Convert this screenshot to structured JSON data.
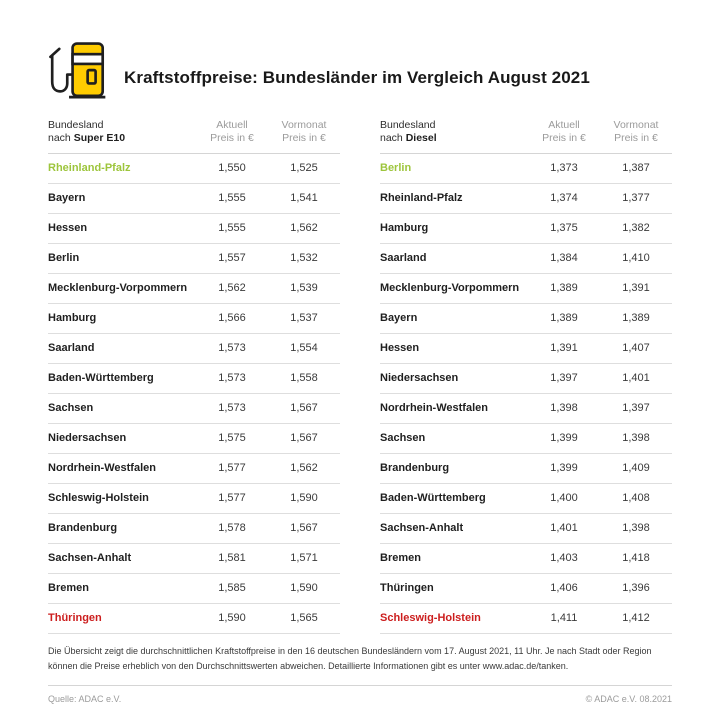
{
  "header": {
    "title": "Kraftstoffpreise: Bundesländer im Vergleich August 2021"
  },
  "columns": {
    "state_line1": "Bundesland",
    "state_prefix": "nach ",
    "current_line1": "Aktuell",
    "current_line2": "Preis in €",
    "previous_line1": "Vormonat",
    "previous_line2": "Preis in €"
  },
  "chart_data": [
    {
      "type": "table",
      "fuel": "Super E10",
      "columns": [
        "Bundesland nach Super E10",
        "Aktuell Preis in €",
        "Vormonat Preis in €"
      ],
      "rows": [
        {
          "state": "Rheinland-Pfalz",
          "aktuell": "1,550",
          "vormonat": "1,525",
          "color": "green"
        },
        {
          "state": "Bayern",
          "aktuell": "1,555",
          "vormonat": "1,541",
          "color": "default"
        },
        {
          "state": "Hessen",
          "aktuell": "1,555",
          "vormonat": "1,562",
          "color": "default"
        },
        {
          "state": "Berlin",
          "aktuell": "1,557",
          "vormonat": "1,532",
          "color": "default"
        },
        {
          "state": "Mecklenburg-Vorpommern",
          "aktuell": "1,562",
          "vormonat": "1,539",
          "color": "default"
        },
        {
          "state": "Hamburg",
          "aktuell": "1,566",
          "vormonat": "1,537",
          "color": "default"
        },
        {
          "state": "Saarland",
          "aktuell": "1,573",
          "vormonat": "1,554",
          "color": "default"
        },
        {
          "state": "Baden-Württemberg",
          "aktuell": "1,573",
          "vormonat": "1,558",
          "color": "default"
        },
        {
          "state": "Sachsen",
          "aktuell": "1,573",
          "vormonat": "1,567",
          "color": "default"
        },
        {
          "state": "Niedersachsen",
          "aktuell": "1,575",
          "vormonat": "1,567",
          "color": "default"
        },
        {
          "state": "Nordrhein-Westfalen",
          "aktuell": "1,577",
          "vormonat": "1,562",
          "color": "default"
        },
        {
          "state": "Schleswig-Holstein",
          "aktuell": "1,577",
          "vormonat": "1,590",
          "color": "default"
        },
        {
          "state": "Brandenburg",
          "aktuell": "1,578",
          "vormonat": "1,567",
          "color": "default"
        },
        {
          "state": "Sachsen-Anhalt",
          "aktuell": "1,581",
          "vormonat": "1,571",
          "color": "default"
        },
        {
          "state": "Bremen",
          "aktuell": "1,585",
          "vormonat": "1,590",
          "color": "default"
        },
        {
          "state": "Thüringen",
          "aktuell": "1,590",
          "vormonat": "1,565",
          "color": "red"
        }
      ]
    },
    {
      "type": "table",
      "fuel": "Diesel",
      "columns": [
        "Bundesland nach Diesel",
        "Aktuell Preis in €",
        "Vormonat Preis in €"
      ],
      "rows": [
        {
          "state": "Berlin",
          "aktuell": "1,373",
          "vormonat": "1,387",
          "color": "green"
        },
        {
          "state": "Rheinland-Pfalz",
          "aktuell": "1,374",
          "vormonat": "1,377",
          "color": "default"
        },
        {
          "state": "Hamburg",
          "aktuell": "1,375",
          "vormonat": "1,382",
          "color": "default"
        },
        {
          "state": "Saarland",
          "aktuell": "1,384",
          "vormonat": "1,410",
          "color": "default"
        },
        {
          "state": "Mecklenburg-Vorpommern",
          "aktuell": "1,389",
          "vormonat": "1,391",
          "color": "default"
        },
        {
          "state": "Bayern",
          "aktuell": "1,389",
          "vormonat": "1,389",
          "color": "default"
        },
        {
          "state": "Hessen",
          "aktuell": "1,391",
          "vormonat": "1,407",
          "color": "default"
        },
        {
          "state": "Niedersachsen",
          "aktuell": "1,397",
          "vormonat": "1,401",
          "color": "default"
        },
        {
          "state": "Nordrhein-Westfalen",
          "aktuell": "1,398",
          "vormonat": "1,397",
          "color": "default"
        },
        {
          "state": "Sachsen",
          "aktuell": "1,399",
          "vormonat": "1,398",
          "color": "default"
        },
        {
          "state": "Brandenburg",
          "aktuell": "1,399",
          "vormonat": "1,409",
          "color": "default"
        },
        {
          "state": "Baden-Württemberg",
          "aktuell": "1,400",
          "vormonat": "1,408",
          "color": "default"
        },
        {
          "state": "Sachsen-Anhalt",
          "aktuell": "1,401",
          "vormonat": "1,398",
          "color": "default"
        },
        {
          "state": "Bremen",
          "aktuell": "1,403",
          "vormonat": "1,418",
          "color": "default"
        },
        {
          "state": "Thüringen",
          "aktuell": "1,406",
          "vormonat": "1,396",
          "color": "default"
        },
        {
          "state": "Schleswig-Holstein",
          "aktuell": "1,411",
          "vormonat": "1,412",
          "color": "red"
        }
      ]
    }
  ],
  "footnote": "Die Übersicht zeigt die durchschnittlichen Kraftstoffpreise in den 16 deutschen Bundesländern vom 17. August 2021, 11 Uhr. Je nach Stadt oder Region können die Preise erheblich von den Durchschnittswerten abweichen. Detaillierte Informationen gibt es unter www.adac.de/tanken.",
  "footer": {
    "source": "Quelle: ADAC e.V.",
    "copyright": "© ADAC e.V. 08.2021"
  },
  "colors": {
    "accent_yellow": "#FFCC00",
    "green": "#9DC53C",
    "red": "#CC1E1E",
    "divider": "#d5d5d5",
    "header_gray": "#9b9b9b"
  }
}
